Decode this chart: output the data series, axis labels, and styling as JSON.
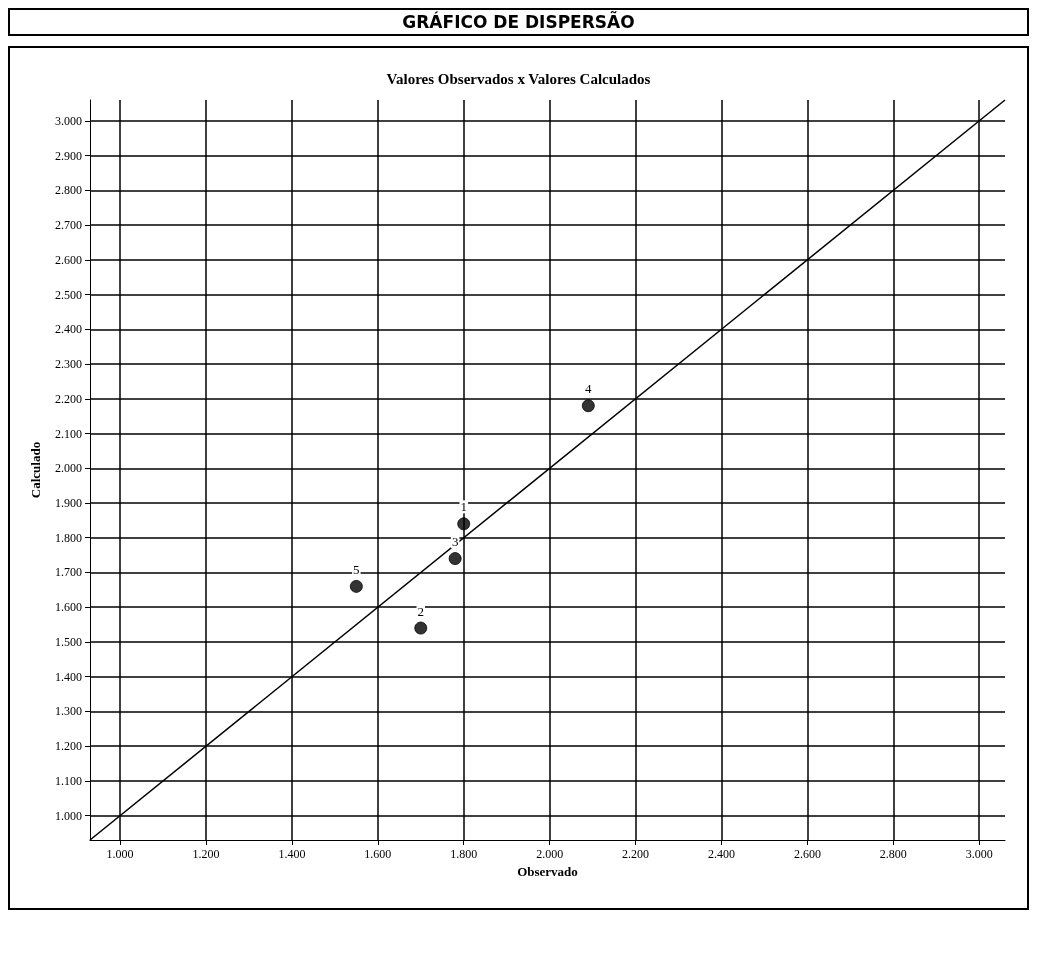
{
  "chart_data": {
    "type": "scatter",
    "title": "GRÁFICO DE DISPERSÃO",
    "subtitle": "Valores Observados x Valores Calculados",
    "xlabel": "Observado",
    "ylabel": "Calculado",
    "series": [
      {
        "color": "#000000",
        "marker": "circle",
        "x": [
          1.8,
          1.7,
          1.78,
          2.09,
          1.55
        ],
        "values": [
          1.84,
          1.54,
          1.74,
          2.18,
          1.66
        ]
      },
      {
        "type": "line",
        "color": "#000000",
        "x": [
          0.93,
          3.06
        ],
        "values": [
          0.93,
          3.06
        ]
      }
    ],
    "xlim": [
      0.93,
      3.06
    ],
    "ylim": [
      0.93,
      3.06
    ],
    "xticks": [
      {
        "value": 1.0,
        "label": "1.000"
      },
      {
        "value": 1.2,
        "label": "1.200"
      },
      {
        "value": 1.4,
        "label": "1.400"
      },
      {
        "value": 1.6,
        "label": "1.600"
      },
      {
        "value": 1.8,
        "label": "1.800"
      },
      {
        "value": 2.0,
        "label": "2.000"
      },
      {
        "value": 2.2,
        "label": "2.200"
      },
      {
        "value": 2.4,
        "label": "2.400"
      },
      {
        "value": 2.6,
        "label": "2.600"
      },
      {
        "value": 2.8,
        "label": "2.800"
      },
      {
        "value": 3.0,
        "label": "3.000"
      }
    ],
    "yticks": [
      {
        "value": 1.0,
        "label": "1.000"
      },
      {
        "value": 1.1,
        "label": "1.100"
      },
      {
        "value": 1.2,
        "label": "1.200"
      },
      {
        "value": 1.3,
        "label": "1.300"
      },
      {
        "value": 1.4,
        "label": "1.400"
      },
      {
        "value": 1.5,
        "label": "1.500"
      },
      {
        "value": 1.6,
        "label": "1.600"
      },
      {
        "value": 1.7,
        "label": "1.700"
      },
      {
        "value": 1.8,
        "label": "1.800"
      },
      {
        "value": 1.9,
        "label": "1.900"
      },
      {
        "value": 2.0,
        "label": "2.000"
      },
      {
        "value": 2.1,
        "label": "2.100"
      },
      {
        "value": 2.2,
        "label": "2.200"
      },
      {
        "value": 2.3,
        "label": "2.300"
      },
      {
        "value": 2.4,
        "label": "2.400"
      },
      {
        "value": 2.5,
        "label": "2.500"
      },
      {
        "value": 2.6,
        "label": "2.600"
      },
      {
        "value": 2.7,
        "label": "2.700"
      },
      {
        "value": 2.8,
        "label": "2.800"
      },
      {
        "value": 2.9,
        "label": "2.900"
      },
      {
        "value": 3.0,
        "label": "3.000"
      }
    ],
    "annotations": [
      {
        "text": "1",
        "x": 1.8,
        "y": 1.84
      },
      {
        "text": "2",
        "x": 1.7,
        "y": 1.54
      },
      {
        "text": "3",
        "x": 1.78,
        "y": 1.74
      },
      {
        "text": "4",
        "x": 2.09,
        "y": 2.18
      },
      {
        "text": "5",
        "x": 1.55,
        "y": 1.66
      }
    ],
    "grid": true
  }
}
